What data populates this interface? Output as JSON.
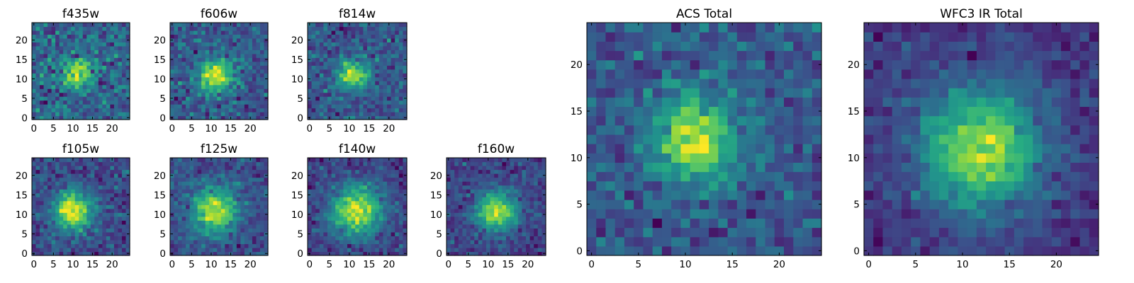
{
  "chart_data": [
    {
      "type": "heatmap",
      "title": "f435w",
      "xlim": [
        0,
        25
      ],
      "ylim": [
        0,
        25
      ],
      "xticks": [
        "0",
        "5",
        "10",
        "15",
        "20"
      ],
      "yticks": [
        "0",
        "5",
        "10",
        "15",
        "20"
      ],
      "colormap": "viridis",
      "grid": false,
      "source_peak": [
        11,
        11
      ],
      "source_width": 2.6,
      "noise": 0.55
    },
    {
      "type": "heatmap",
      "title": "f606w",
      "xlim": [
        0,
        25
      ],
      "ylim": [
        0,
        25
      ],
      "xticks": [
        "0",
        "5",
        "10",
        "15",
        "20"
      ],
      "yticks": [
        "0",
        "5",
        "10",
        "15",
        "20"
      ],
      "colormap": "viridis",
      "grid": false,
      "source_peak": [
        11,
        11
      ],
      "source_width": 3.0,
      "noise": 0.45
    },
    {
      "type": "heatmap",
      "title": "f814w",
      "xlim": [
        0,
        25
      ],
      "ylim": [
        0,
        25
      ],
      "xticks": [
        "0",
        "5",
        "10",
        "15",
        "20"
      ],
      "yticks": [
        "0",
        "5",
        "10",
        "15",
        "20"
      ],
      "colormap": "viridis",
      "grid": false,
      "source_peak": [
        11,
        11
      ],
      "source_width": 2.8,
      "noise": 0.5
    },
    {
      "type": "heatmap",
      "title": "f105w",
      "xlim": [
        0,
        25
      ],
      "ylim": [
        0,
        25
      ],
      "xticks": [
        "0",
        "5",
        "10",
        "15",
        "20"
      ],
      "yticks": [
        "0",
        "5",
        "10",
        "15",
        "20"
      ],
      "colormap": "viridis",
      "grid": false,
      "source_peak": [
        10,
        11
      ],
      "source_width": 3.5,
      "noise": 0.35
    },
    {
      "type": "heatmap",
      "title": "f125w",
      "xlim": [
        0,
        25
      ],
      "ylim": [
        0,
        25
      ],
      "xticks": [
        "0",
        "5",
        "10",
        "15",
        "20"
      ],
      "yticks": [
        "0",
        "5",
        "10",
        "15",
        "20"
      ],
      "colormap": "viridis",
      "grid": false,
      "source_peak": [
        11,
        11
      ],
      "source_width": 4.0,
      "noise": 0.35
    },
    {
      "type": "heatmap",
      "title": "f140w",
      "xlim": [
        0,
        25
      ],
      "ylim": [
        0,
        25
      ],
      "xticks": [
        "0",
        "5",
        "10",
        "15",
        "20"
      ],
      "yticks": [
        "0",
        "5",
        "10",
        "15",
        "20"
      ],
      "colormap": "viridis",
      "grid": false,
      "source_peak": [
        12,
        11
      ],
      "source_width": 4.5,
      "noise": 0.3
    },
    {
      "type": "heatmap",
      "title": "f160w",
      "xlim": [
        0,
        25
      ],
      "ylim": [
        0,
        25
      ],
      "xticks": [
        "0",
        "5",
        "10",
        "15",
        "20"
      ],
      "yticks": [
        "0",
        "5",
        "10",
        "15",
        "20"
      ],
      "colormap": "viridis",
      "grid": false,
      "source_peak": [
        12,
        11
      ],
      "source_width": 3.5,
      "noise": 0.3
    },
    {
      "type": "heatmap",
      "title": "ACS Total",
      "xlim": [
        0,
        25
      ],
      "ylim": [
        0,
        25
      ],
      "xticks": [
        "0",
        "5",
        "10",
        "15",
        "20"
      ],
      "yticks": [
        "0",
        "5",
        "10",
        "15",
        "20"
      ],
      "colormap": "viridis",
      "grid": false,
      "source_peak": [
        11,
        12
      ],
      "source_width": 3.0,
      "noise": 0.4
    },
    {
      "type": "heatmap",
      "title": "WFC3 IR Total",
      "xlim": [
        0,
        25
      ],
      "ylim": [
        0,
        25
      ],
      "xticks": [
        "0",
        "5",
        "10",
        "15",
        "20"
      ],
      "yticks": [
        "0",
        "5",
        "10",
        "15",
        "20"
      ],
      "colormap": "viridis",
      "grid": false,
      "source_peak": [
        12,
        11
      ],
      "source_width": 4.5,
      "noise": 0.25
    }
  ]
}
